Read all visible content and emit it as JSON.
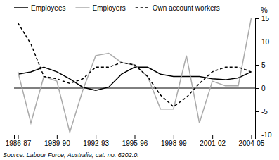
{
  "chart_data": {
    "type": "line",
    "categories": [
      "1986-87",
      null,
      null,
      "1989-90",
      null,
      null,
      "1992-93",
      null,
      null,
      "1995-96",
      null,
      null,
      "1998-99",
      null,
      null,
      "2001-02",
      null,
      null,
      "2004-05"
    ],
    "series": [
      {
        "name": "Employees",
        "color": "#000000",
        "values": [
          3.0,
          3.5,
          4.5,
          3.5,
          2.0,
          0.2,
          -0.5,
          0.2,
          3.0,
          4.5,
          4.5,
          3.0,
          2.5,
          2.5,
          2.5,
          2.0,
          1.8,
          2.2,
          3.5
        ]
      },
      {
        "name": "Employers",
        "color": "#aaaaaa",
        "values": [
          3.5,
          -7.5,
          2.5,
          1.5,
          -9.5,
          -0.5,
          7.0,
          7.5,
          5.5,
          5.0,
          2.5,
          -4.5,
          -4.5,
          7.0,
          -7.5,
          1.5,
          0.5,
          0.5,
          15.0
        ]
      },
      {
        "name": "Own account workers",
        "color": "#000000",
        "line_style": "dashed",
        "values": [
          14.0,
          9.5,
          2.5,
          2.0,
          1.0,
          2.0,
          4.5,
          4.5,
          5.5,
          5.0,
          2.5,
          -1.5,
          -4.0,
          -2.0,
          1.0,
          3.5,
          4.5,
          4.5,
          3.5
        ]
      }
    ],
    "ylabel": "%",
    "ylim": [
      -10,
      15
    ],
    "yticks": [
      -10,
      -5,
      0,
      5,
      10,
      15
    ],
    "legend": "top",
    "grid": false,
    "annotations": [
      "Source: Labour Force, Australia, cat. no. 6202.0."
    ]
  }
}
